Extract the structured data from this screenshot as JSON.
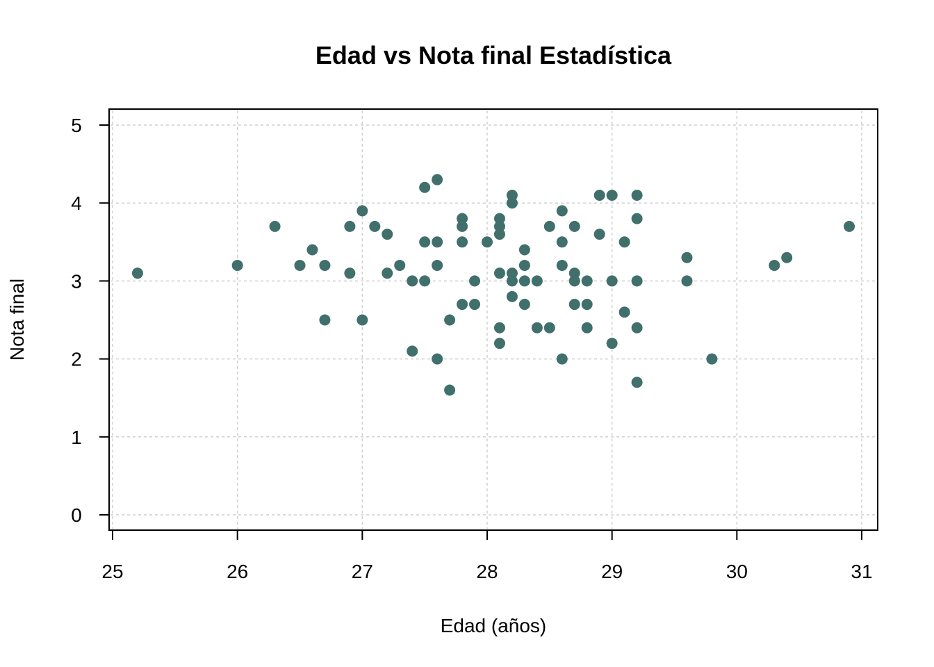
{
  "chart_data": {
    "type": "scatter",
    "title": "Edad vs Nota final Estadística",
    "xlabel": "Edad (años)",
    "ylabel": "Nota final",
    "xlim": [
      25,
      31
    ],
    "ylim": [
      0,
      5
    ],
    "xticks": [
      "25",
      "26",
      "27",
      "28",
      "29",
      "30",
      "31"
    ],
    "yticks": [
      "0",
      "1",
      "2",
      "3",
      "4",
      "5"
    ],
    "grid": true,
    "point_color": "#41706c",
    "grid_color": "#cfcfcf",
    "points": [
      [
        25.2,
        3.1
      ],
      [
        26.0,
        3.2
      ],
      [
        26.3,
        3.7
      ],
      [
        26.5,
        3.2
      ],
      [
        26.6,
        3.4
      ],
      [
        26.7,
        3.2
      ],
      [
        26.7,
        2.5
      ],
      [
        26.9,
        3.7
      ],
      [
        26.9,
        3.1
      ],
      [
        27.0,
        3.9
      ],
      [
        27.0,
        2.5
      ],
      [
        27.1,
        3.7
      ],
      [
        27.2,
        3.6
      ],
      [
        27.2,
        3.1
      ],
      [
        27.3,
        3.2
      ],
      [
        27.4,
        3.0
      ],
      [
        27.4,
        2.1
      ],
      [
        27.5,
        4.2
      ],
      [
        27.5,
        3.5
      ],
      [
        27.5,
        3.0
      ],
      [
        27.6,
        4.3
      ],
      [
        27.6,
        3.5
      ],
      [
        27.6,
        3.2
      ],
      [
        27.6,
        2.0
      ],
      [
        27.7,
        2.5
      ],
      [
        27.7,
        1.6
      ],
      [
        27.8,
        3.8
      ],
      [
        27.8,
        3.7
      ],
      [
        27.8,
        3.5
      ],
      [
        27.8,
        2.7
      ],
      [
        27.9,
        3.0
      ],
      [
        27.9,
        2.7
      ],
      [
        28.0,
        3.5
      ],
      [
        28.1,
        3.8
      ],
      [
        28.1,
        3.7
      ],
      [
        28.1,
        3.6
      ],
      [
        28.1,
        3.1
      ],
      [
        28.1,
        2.4
      ],
      [
        28.1,
        2.2
      ],
      [
        28.2,
        4.1
      ],
      [
        28.2,
        4.0
      ],
      [
        28.2,
        3.1
      ],
      [
        28.2,
        3.0
      ],
      [
        28.2,
        2.8
      ],
      [
        28.3,
        3.4
      ],
      [
        28.3,
        3.2
      ],
      [
        28.3,
        3.0
      ],
      [
        28.3,
        2.7
      ],
      [
        28.4,
        3.0
      ],
      [
        28.4,
        2.4
      ],
      [
        28.5,
        3.7
      ],
      [
        28.5,
        2.4
      ],
      [
        28.6,
        3.9
      ],
      [
        28.6,
        3.5
      ],
      [
        28.6,
        3.2
      ],
      [
        28.6,
        2.0
      ],
      [
        28.7,
        3.7
      ],
      [
        28.7,
        3.1
      ],
      [
        28.7,
        3.0
      ],
      [
        28.7,
        2.7
      ],
      [
        28.8,
        3.0
      ],
      [
        28.8,
        2.7
      ],
      [
        28.8,
        2.4
      ],
      [
        28.9,
        4.1
      ],
      [
        28.9,
        3.6
      ],
      [
        29.0,
        4.1
      ],
      [
        29.0,
        3.0
      ],
      [
        29.0,
        2.2
      ],
      [
        29.1,
        3.5
      ],
      [
        29.1,
        2.6
      ],
      [
        29.2,
        4.1
      ],
      [
        29.2,
        3.8
      ],
      [
        29.2,
        3.0
      ],
      [
        29.2,
        2.4
      ],
      [
        29.2,
        1.7
      ],
      [
        29.6,
        3.3
      ],
      [
        29.6,
        3.0
      ],
      [
        29.8,
        2.0
      ],
      [
        30.3,
        3.2
      ],
      [
        30.4,
        3.3
      ],
      [
        30.9,
        3.7
      ]
    ]
  }
}
